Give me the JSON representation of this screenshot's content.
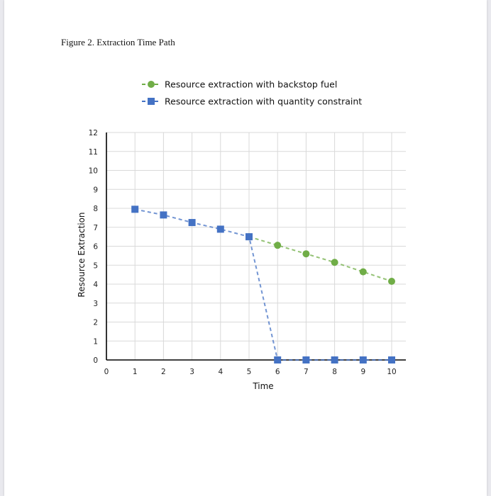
{
  "figure_title": "Figure 2. Extraction Time Path",
  "chart_data": {
    "type": "line",
    "title": "",
    "xlabel": "Time",
    "ylabel": "Resource Extraction",
    "xlim": [
      0,
      10
    ],
    "ylim": [
      0,
      12
    ],
    "xticks": [
      0,
      1,
      2,
      3,
      4,
      5,
      6,
      7,
      8,
      9,
      10
    ],
    "yticks": [
      0,
      1,
      2,
      3,
      4,
      5,
      6,
      7,
      8,
      9,
      10,
      11,
      12
    ],
    "grid": true,
    "legend_position": "top",
    "series": [
      {
        "name": "Resource extraction with backstop fuel",
        "color": "#70ad47",
        "marker": "circle",
        "line": "dashed",
        "x": [
          5,
          6,
          7,
          8,
          9,
          10
        ],
        "y": [
          6.5,
          6.05,
          5.6,
          5.15,
          4.65,
          4.15
        ]
      },
      {
        "name": "Resource extraction with quantity constraint",
        "color": "#4472c4",
        "marker": "square",
        "line": "dashed",
        "x": [
          1,
          2,
          3,
          4,
          5,
          6,
          7,
          8,
          9,
          10
        ],
        "y": [
          7.95,
          7.65,
          7.25,
          6.9,
          6.5,
          0,
          0,
          0,
          0,
          0
        ]
      }
    ]
  }
}
